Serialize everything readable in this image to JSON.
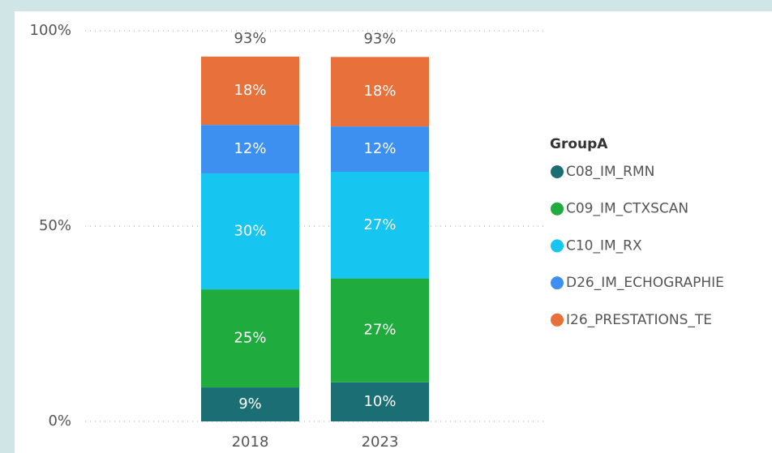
{
  "chart_data": {
    "type": "stacked_bar",
    "categories": [
      "2018",
      "2023"
    ],
    "legend_title": "GroupA",
    "series": [
      {
        "name": "C08_IM_RMN",
        "color": "#1b6f74",
        "values": [
          8.7,
          10.0
        ],
        "value_labels": [
          "9%",
          "10%"
        ]
      },
      {
        "name": "C09_IM_CTXSCAN",
        "color": "#20ab3f",
        "values": [
          25.1,
          26.6
        ],
        "value_labels": [
          "25%",
          "27%"
        ]
      },
      {
        "name": "C10_IM_RX",
        "color": "#16c5f0",
        "values": [
          29.7,
          27.3
        ],
        "value_labels": [
          "30%",
          "27%"
        ]
      },
      {
        "name": "D26_IM_ECHOGRAPHIE",
        "color": "#3d8ff0",
        "values": [
          12.4,
          11.6
        ],
        "value_labels": [
          "12%",
          "12%"
        ]
      },
      {
        "name": "I26_PRESTATIONS_TE",
        "color": "#e8703a",
        "values": [
          17.5,
          17.8
        ],
        "value_labels": [
          "18%",
          "18%"
        ]
      }
    ],
    "totals": [
      93.4,
      93.3
    ],
    "total_labels": [
      "93%",
      "93%"
    ],
    "ylim": [
      0,
      100
    ],
    "yticks": [
      {
        "value": 0,
        "label": "0%"
      },
      {
        "value": 50,
        "label": "50%"
      },
      {
        "value": 100,
        "label": "100%"
      }
    ],
    "grid": true,
    "legend": "right"
  }
}
